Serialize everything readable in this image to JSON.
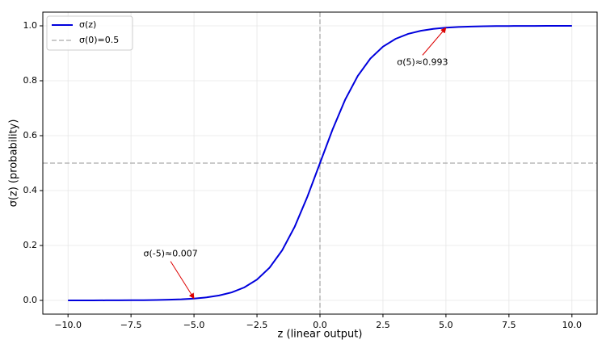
{
  "chart_data": {
    "type": "line",
    "xlabel": "z (linear output)",
    "ylabel": "σ(z) (probability)",
    "x": [
      -10,
      -9.5,
      -9,
      -8.5,
      -8,
      -7.5,
      -7,
      -6.5,
      -6,
      -5.5,
      -5,
      -4.5,
      -4,
      -3.5,
      -3,
      -2.5,
      -2,
      -1.5,
      -1,
      -0.5,
      0,
      0.5,
      1,
      1.5,
      2,
      2.5,
      3,
      3.5,
      4,
      4.5,
      5,
      5.5,
      6,
      6.5,
      7,
      7.5,
      8,
      8.5,
      9,
      9.5,
      10
    ],
    "series": [
      {
        "name": "σ(z)",
        "color": "#0000dd",
        "values": [
          4.54e-05,
          7.49e-05,
          0.000123,
          0.000203,
          0.000335,
          0.000553,
          0.000911,
          0.0015,
          0.00247,
          0.00407,
          0.00669,
          0.011,
          0.018,
          0.0293,
          0.0474,
          0.0759,
          0.1192,
          0.1824,
          0.2689,
          0.3775,
          0.5,
          0.6225,
          0.7311,
          0.8176,
          0.8808,
          0.9241,
          0.9526,
          0.9707,
          0.982,
          0.989,
          0.99331,
          0.99593,
          0.99753,
          0.9985,
          0.99909,
          0.99945,
          0.99966,
          0.9998,
          0.99988,
          0.99993,
          0.99995
        ]
      }
    ],
    "reference_line": {
      "name": "σ(0)=0.5",
      "x": 0,
      "y": 0.5,
      "color": "#aaaaaa"
    },
    "annotations": [
      {
        "text": "σ(-5)≈0.007",
        "x": -5,
        "y": 0.007,
        "color": "#dd0000"
      },
      {
        "text": "σ(5)≈0.993",
        "x": 5,
        "y": 0.993,
        "color": "#dd0000"
      }
    ],
    "xlim": [
      -11,
      11
    ],
    "ylim": [
      -0.05,
      1.05
    ],
    "xticks": [
      {
        "value": -10,
        "label": "−10.0"
      },
      {
        "value": -7.5,
        "label": "−7.5"
      },
      {
        "value": -5,
        "label": "−5.0"
      },
      {
        "value": -2.5,
        "label": "−2.5"
      },
      {
        "value": 0,
        "label": "0.0"
      },
      {
        "value": 2.5,
        "label": "2.5"
      },
      {
        "value": 5,
        "label": "5.0"
      },
      {
        "value": 7.5,
        "label": "7.5"
      },
      {
        "value": 10,
        "label": "10.0"
      }
    ],
    "yticks": [
      {
        "value": 0,
        "label": "0.0"
      },
      {
        "value": 0.2,
        "label": "0.2"
      },
      {
        "value": 0.4,
        "label": "0.4"
      },
      {
        "value": 0.6,
        "label": "0.6"
      },
      {
        "value": 0.8,
        "label": "0.8"
      },
      {
        "value": 1,
        "label": "1.0"
      }
    ],
    "grid": true,
    "legend": "upper left"
  }
}
